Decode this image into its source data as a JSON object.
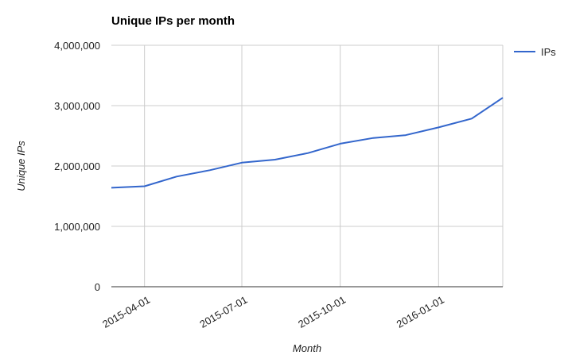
{
  "chart_data": {
    "type": "line",
    "title": "Unique IPs per month",
    "xlabel": "Month",
    "ylabel": "Unique IPs",
    "ylim": [
      0,
      4000000
    ],
    "y_ticks": [
      "0",
      "1,000,000",
      "2,000,000",
      "3,000,000",
      "4,000,000"
    ],
    "x_tick_labels": [
      "2015-04-01",
      "2015-07-01",
      "2015-10-01",
      "2016-01-01"
    ],
    "x": [
      "2015-03-01",
      "2015-04-01",
      "2015-05-01",
      "2015-06-01",
      "2015-07-01",
      "2015-08-01",
      "2015-09-01",
      "2015-10-01",
      "2015-11-01",
      "2015-12-01",
      "2016-01-01",
      "2016-02-01",
      "2016-03-01"
    ],
    "series": [
      {
        "name": "IPs",
        "color": "#3366cc",
        "values": [
          1640000,
          1665000,
          1825000,
          1930000,
          2055000,
          2105000,
          2215000,
          2370000,
          2465000,
          2510000,
          2640000,
          2785000,
          3130000
        ]
      }
    ],
    "grid": true,
    "legend": "right"
  }
}
